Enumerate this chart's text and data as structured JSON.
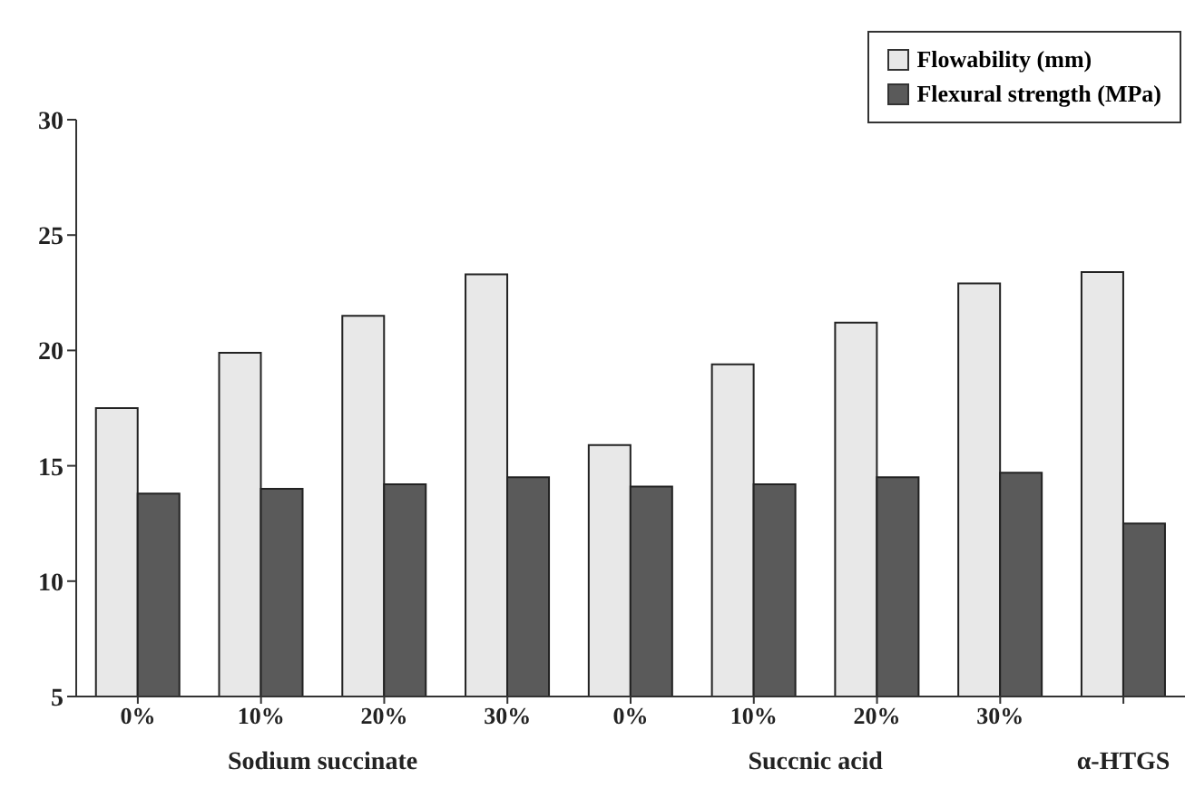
{
  "chart_data": {
    "type": "bar",
    "categories": [
      "0%",
      "10%",
      "20%",
      "30%",
      "0%",
      "10%",
      "20%",
      "30%",
      null
    ],
    "series": [
      {
        "name": "Flowability (mm)",
        "color": "#e8e8e8",
        "values": [
          17.5,
          19.9,
          21.5,
          23.3,
          15.9,
          19.4,
          21.2,
          22.9,
          23.4
        ]
      },
      {
        "name": "Flexural strength (MPa)",
        "color": "#5a5a5a",
        "values": [
          13.8,
          14.0,
          14.2,
          14.5,
          14.1,
          14.2,
          14.5,
          14.7,
          12.5
        ]
      }
    ],
    "ylim": [
      5,
      30
    ],
    "yticks": [
      5,
      10,
      15,
      20,
      25,
      30
    ],
    "grid": false,
    "legend": "top right",
    "annotations": [
      "Sodium succinate",
      "Succnic acid",
      "α-HTGS"
    ]
  }
}
